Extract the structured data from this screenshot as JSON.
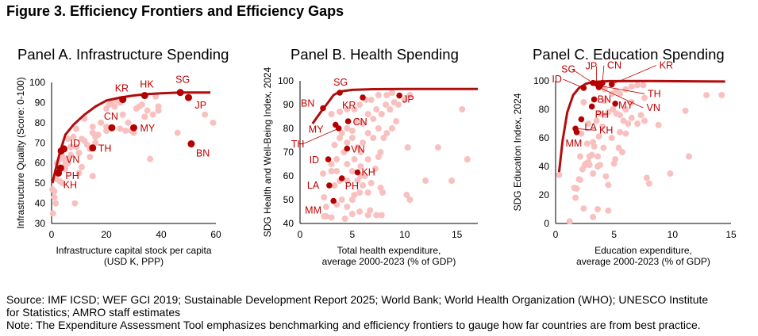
{
  "figure_title": "Figure 3. Efficiency Frontiers and Efficiency Gaps",
  "colors": {
    "frontier": "#b00d0d",
    "highlight": "#b30000",
    "others": "#f9c0c0",
    "label": "#c00000"
  },
  "footer": {
    "source_line1": "Source: IMF ICSD; WEF GCI 2019; Sustainable Development Report 2025; World Bank; World Health Organization (WHO); UNESCO Institute",
    "source_line2": "for Statistics; AMRO staff estimates",
    "note": "Note: The Expenditure Assessment Tool emphasizes benchmarking and efficiency frontiers to gauge how far countries are from best practice."
  },
  "chart_data": [
    {
      "type": "scatter",
      "title": "Panel A. Infrastructure Spending",
      "xlabel": [
        "Infrastructure capital stock per capita",
        "(USD K, PPP)"
      ],
      "ylabel": "Infrastructure Quality (Score: 0-100)",
      "xlim": [
        0,
        60
      ],
      "ylim": [
        30,
        100
      ],
      "xticks": [
        0,
        20,
        40,
        60
      ],
      "yticks": [
        30,
        40,
        50,
        60,
        70,
        80,
        90,
        100
      ],
      "grid": false,
      "frontier": [
        [
          0.3,
          50
        ],
        [
          1.5,
          57
        ],
        [
          3,
          65
        ],
        [
          5,
          74
        ],
        [
          8,
          79
        ],
        [
          12,
          84
        ],
        [
          16,
          88
        ],
        [
          20,
          91
        ],
        [
          25,
          92.5
        ],
        [
          30,
          93.5
        ],
        [
          35,
          94.2
        ],
        [
          40,
          94.6
        ],
        [
          47,
          95
        ],
        [
          58,
          95
        ]
      ],
      "highlighted": [
        {
          "label": "SG",
          "x": 47,
          "y": 95
        },
        {
          "label": "JP",
          "x": 50,
          "y": 92.5
        },
        {
          "label": "HK",
          "x": 34,
          "y": 93.5
        },
        {
          "label": "KR",
          "x": 26,
          "y": 91.5
        },
        {
          "label": "CN",
          "x": 22,
          "y": 77.5
        },
        {
          "label": "MY",
          "x": 30,
          "y": 77.5
        },
        {
          "label": "TH",
          "x": 15,
          "y": 67.5
        },
        {
          "label": "ID",
          "x": 4.5,
          "y": 67
        },
        {
          "label": "VN",
          "x": 3.5,
          "y": 66
        },
        {
          "label": "PH",
          "x": 3.3,
          "y": 57.5
        },
        {
          "label": "KH",
          "x": 2.5,
          "y": 55
        },
        {
          "label": "BN",
          "x": 51,
          "y": 69.5
        }
      ],
      "others": [
        [
          0.5,
          35
        ],
        [
          0.3,
          47
        ],
        [
          1,
          46
        ],
        [
          1,
          43
        ],
        [
          1.5,
          40
        ],
        [
          1.5,
          52
        ],
        [
          2,
          56
        ],
        [
          2,
          60
        ],
        [
          3,
          62
        ],
        [
          4,
          63
        ],
        [
          5,
          61
        ],
        [
          5,
          59
        ],
        [
          6,
          60
        ],
        [
          7,
          64
        ],
        [
          7,
          68
        ],
        [
          6,
          72
        ],
        [
          8,
          73
        ],
        [
          9,
          77
        ],
        [
          10,
          65
        ],
        [
          11,
          72
        ],
        [
          12,
          71
        ],
        [
          12,
          82
        ],
        [
          13,
          69
        ],
        [
          14,
          67
        ],
        [
          14,
          63
        ],
        [
          15,
          75
        ],
        [
          15,
          78
        ],
        [
          16,
          73
        ],
        [
          16,
          70
        ],
        [
          17,
          74
        ],
        [
          18,
          80
        ],
        [
          20,
          76
        ],
        [
          20,
          78
        ],
        [
          20,
          87
        ],
        [
          21,
          89
        ],
        [
          22,
          90
        ],
        [
          23,
          88
        ],
        [
          24,
          91
        ],
        [
          25,
          90
        ],
        [
          25,
          77
        ],
        [
          26,
          84
        ],
        [
          27,
          76
        ],
        [
          28,
          80
        ],
        [
          29,
          76
        ],
        [
          30,
          75
        ],
        [
          31,
          87
        ],
        [
          32,
          88
        ],
        [
          33,
          89
        ],
        [
          34,
          83
        ],
        [
          35,
          86
        ],
        [
          36,
          62
        ],
        [
          37,
          84
        ],
        [
          38,
          93
        ],
        [
          39,
          86
        ],
        [
          39,
          88
        ],
        [
          46,
          75
        ],
        [
          56,
          84
        ],
        [
          59,
          80
        ],
        [
          8.5,
          40
        ],
        [
          15,
          53.5
        ],
        [
          5,
          57
        ],
        [
          6,
          62
        ],
        [
          10,
          55
        ],
        [
          9,
          68
        ],
        [
          4,
          50
        ],
        [
          3,
          51
        ],
        [
          11,
          58
        ]
      ]
    },
    {
      "type": "scatter",
      "title": "Panel B. Health Spending",
      "xlabel": [
        "Total health expenditure,",
        "average  2000-2023 (% of GDP)"
      ],
      "ylabel": "SDG Health and Well-Being Index, 2024",
      "xlim": [
        0,
        17
      ],
      "ylim": [
        40,
        100
      ],
      "xticks": [
        0,
        5,
        10,
        15
      ],
      "yticks": [
        40,
        50,
        60,
        70,
        80,
        90,
        100
      ],
      "grid": false,
      "frontier": [
        [
          1.2,
          82
        ],
        [
          2,
          87
        ],
        [
          2.7,
          91
        ],
        [
          3.2,
          94
        ],
        [
          3.8,
          95.5
        ],
        [
          5,
          96.2
        ],
        [
          7,
          96.5
        ],
        [
          10,
          96.6
        ],
        [
          17,
          96.6
        ]
      ],
      "highlighted": [
        {
          "label": "SG",
          "x": 3.8,
          "y": 95
        },
        {
          "label": "BN",
          "x": 2.2,
          "y": 88.5
        },
        {
          "label": "KR",
          "x": 6,
          "y": 93
        },
        {
          "label": "JP",
          "x": 9.5,
          "y": 93.8
        },
        {
          "label": "MY",
          "x": 3.4,
          "y": 81.5
        },
        {
          "label": "TH",
          "x": 3.7,
          "y": 80
        },
        {
          "label": "CN",
          "x": 4.6,
          "y": 83
        },
        {
          "label": "VN",
          "x": 4.5,
          "y": 71.5
        },
        {
          "label": "ID",
          "x": 2.7,
          "y": 67
        },
        {
          "label": "KH",
          "x": 5.5,
          "y": 61.5
        },
        {
          "label": "PH",
          "x": 4,
          "y": 59
        },
        {
          "label": "LA",
          "x": 2.8,
          "y": 56
        },
        {
          "label": "MM",
          "x": 3.2,
          "y": 49.5
        }
      ],
      "others": [
        [
          2.3,
          43
        ],
        [
          2.5,
          43
        ],
        [
          3,
          42.5
        ],
        [
          4.3,
          42
        ],
        [
          5,
          44
        ],
        [
          5.7,
          45
        ],
        [
          6.5,
          43.5
        ],
        [
          6.7,
          45.5
        ],
        [
          7.3,
          43.5
        ],
        [
          7.8,
          43.5
        ],
        [
          2.3,
          51
        ],
        [
          2.5,
          47
        ],
        [
          3.5,
          48
        ],
        [
          4,
          50
        ],
        [
          4.5,
          47
        ],
        [
          5,
          50
        ],
        [
          5.2,
          52
        ],
        [
          5.7,
          53
        ],
        [
          6,
          56
        ],
        [
          6.5,
          53
        ],
        [
          7.7,
          55
        ],
        [
          7.9,
          53
        ],
        [
          3.3,
          56
        ],
        [
          3.8,
          58
        ],
        [
          4.5,
          58
        ],
        [
          5.5,
          58
        ],
        [
          5.8,
          60
        ],
        [
          6.8,
          57
        ],
        [
          3,
          62
        ],
        [
          3.5,
          62
        ],
        [
          4.5,
          65
        ],
        [
          5,
          62
        ],
        [
          5.8,
          64
        ],
        [
          6.2,
          60
        ],
        [
          3.5,
          67
        ],
        [
          4.2,
          70
        ],
        [
          5.2,
          67
        ],
        [
          5.8,
          70
        ],
        [
          6.5,
          67
        ],
        [
          7.5,
          68
        ],
        [
          7.7,
          70
        ],
        [
          3.3,
          73
        ],
        [
          3.8,
          76
        ],
        [
          4.5,
          74
        ],
        [
          5,
          76
        ],
        [
          5.5,
          72
        ],
        [
          6,
          74
        ],
        [
          6.5,
          78
        ],
        [
          7,
          76
        ],
        [
          7.5,
          80
        ],
        [
          8,
          76
        ],
        [
          8.3,
          78
        ],
        [
          8.8,
          80
        ],
        [
          4,
          78
        ],
        [
          4.5,
          80
        ],
        [
          5,
          79
        ],
        [
          5.5,
          83
        ],
        [
          6,
          82
        ],
        [
          6.5,
          86
        ],
        [
          7,
          84
        ],
        [
          7.3,
          88
        ],
        [
          7.8,
          86
        ],
        [
          8.2,
          90
        ],
        [
          8.6,
          88
        ],
        [
          9,
          91
        ],
        [
          9.4,
          90
        ],
        [
          10,
          92
        ],
        [
          10.5,
          94
        ],
        [
          3,
          86
        ],
        [
          3.8,
          87
        ],
        [
          4.5,
          88
        ],
        [
          5.2,
          88
        ],
        [
          5.7,
          90
        ],
        [
          6.3,
          92
        ],
        [
          6.8,
          92
        ],
        [
          7.5,
          94
        ],
        [
          8.3,
          94
        ],
        [
          8.8,
          95
        ],
        [
          2.2,
          61
        ],
        [
          3,
          65
        ],
        [
          10.3,
          72
        ],
        [
          13.2,
          72
        ],
        [
          15.5,
          88
        ],
        [
          16,
          67
        ],
        [
          12,
          58
        ],
        [
          14.5,
          58
        ],
        [
          10.2,
          52
        ],
        [
          10.5,
          50
        ],
        [
          9.2,
          83
        ],
        [
          7.2,
          63
        ]
      ]
    },
    {
      "type": "scatter",
      "title": "Panel C. Education Spending",
      "xlabel": [
        "Education expenditure,",
        "average  2000-2023 (% of GDP)"
      ],
      "ylabel": "SDG Education Index, 2024",
      "xlim": [
        0,
        15
      ],
      "ylim": [
        0,
        100
      ],
      "xticks": [
        0,
        5,
        10,
        15
      ],
      "yticks": [
        0,
        20,
        40,
        60,
        80,
        100
      ],
      "grid": false,
      "frontier": [
        [
          0.3,
          36
        ],
        [
          0.6,
          58
        ],
        [
          1,
          78
        ],
        [
          1.5,
          90
        ],
        [
          2,
          95
        ],
        [
          2.6,
          98
        ],
        [
          3.3,
          99.3
        ],
        [
          4.5,
          99.8
        ],
        [
          8,
          99.9
        ],
        [
          14.5,
          99.5
        ]
      ],
      "highlighted": [
        {
          "label": "SG",
          "x": 3.2,
          "y": 98.5
        },
        {
          "label": "ID",
          "x": 2.4,
          "y": 95
        },
        {
          "label": "JP",
          "x": 3.5,
          "y": 98
        },
        {
          "label": "CN",
          "x": 4.0,
          "y": 98.5
        },
        {
          "label": "KR",
          "x": 4.8,
          "y": 97.5
        },
        {
          "label": "TH",
          "x": 3.8,
          "y": 96.5
        },
        {
          "label": "VN",
          "x": 3.7,
          "y": 95.5
        },
        {
          "label": "BN",
          "x": 3.3,
          "y": 87
        },
        {
          "label": "PH",
          "x": 3.1,
          "y": 82
        },
        {
          "label": "MY",
          "x": 5.1,
          "y": 84
        },
        {
          "label": "LA",
          "x": 2.2,
          "y": 73
        },
        {
          "label": "KH",
          "x": 1.7,
          "y": 66.5
        },
        {
          "label": "MM",
          "x": 1.8,
          "y": 64
        }
      ],
      "others": [
        [
          1.2,
          1.5
        ],
        [
          1.6,
          25
        ],
        [
          1.8,
          24.5
        ],
        [
          1.7,
          18
        ],
        [
          2.4,
          10.5
        ],
        [
          3.2,
          4.5
        ],
        [
          3.6,
          10
        ],
        [
          4.5,
          9
        ],
        [
          2.0,
          31
        ],
        [
          2.1,
          30.5
        ],
        [
          2.3,
          38
        ],
        [
          2.5,
          41
        ],
        [
          2.6,
          42
        ],
        [
          2.8,
          43
        ],
        [
          2.9,
          41
        ],
        [
          3.2,
          35
        ],
        [
          3.6,
          40
        ],
        [
          3.8,
          41
        ],
        [
          4.3,
          33
        ],
        [
          4.5,
          27
        ],
        [
          2.1,
          47
        ],
        [
          2.9,
          47
        ],
        [
          3.1,
          48
        ],
        [
          3.6,
          47
        ],
        [
          3.3,
          54
        ],
        [
          3.2,
          57
        ],
        [
          3.7,
          61
        ],
        [
          4.1,
          53
        ],
        [
          4.8,
          60
        ],
        [
          5.0,
          42
        ],
        [
          5.1,
          45
        ],
        [
          5.7,
          50
        ],
        [
          5.4,
          53
        ],
        [
          2.4,
          85
        ],
        [
          2.8,
          70
        ],
        [
          3.5,
          72
        ],
        [
          4.0,
          68
        ],
        [
          4.3,
          76
        ],
        [
          4.5,
          78
        ],
        [
          4.9,
          80
        ],
        [
          5.2,
          77
        ],
        [
          5.5,
          76
        ],
        [
          5.8,
          72
        ],
        [
          6.2,
          70
        ],
        [
          6.5,
          74
        ],
        [
          7.3,
          76
        ],
        [
          7.0,
          70
        ],
        [
          7.6,
          72
        ],
        [
          8.8,
          69
        ],
        [
          6.0,
          80
        ],
        [
          6.5,
          85
        ],
        [
          7.6,
          88
        ],
        [
          5.5,
          91
        ],
        [
          6.0,
          94
        ],
        [
          6.5,
          96
        ],
        [
          7.0,
          97
        ],
        [
          7.5,
          97
        ],
        [
          4.8,
          91
        ],
        [
          5.2,
          93
        ],
        [
          4.2,
          94
        ],
        [
          12.9,
          90
        ],
        [
          14.2,
          90
        ],
        [
          11.1,
          79
        ],
        [
          11.4,
          47
        ],
        [
          9.8,
          35
        ],
        [
          7.8,
          32
        ],
        [
          8.0,
          28
        ],
        [
          0.3,
          34
        ],
        [
          2.2,
          63
        ],
        [
          2.7,
          56
        ],
        [
          5.5,
          64
        ],
        [
          6.0,
          63
        ],
        [
          3.8,
          77
        ],
        [
          4.2,
          86
        ]
      ]
    }
  ]
}
